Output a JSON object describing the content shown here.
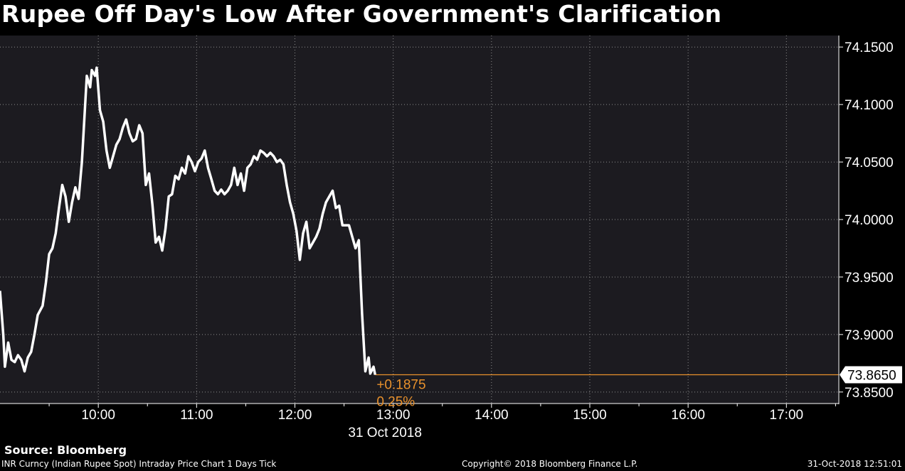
{
  "chart_data": {
    "type": "line",
    "title": "Rupee Off Day's Low After Government's Clarification",
    "date_label": "31 Oct 2018",
    "x_ticks": [
      "10:00",
      "11:00",
      "12:00",
      "13:00",
      "14:00",
      "15:00",
      "16:00",
      "17:00"
    ],
    "x_range": [
      "09:00",
      "17:32"
    ],
    "y_ticks": [
      "74.1500",
      "74.1000",
      "74.0500",
      "74.0000",
      "73.9500",
      "73.9000",
      "73.8500"
    ],
    "ylim": [
      73.84,
      74.16
    ],
    "grid": true,
    "last_value_label": "73.8650",
    "last_value": 73.865,
    "change_abs": "+0.1875",
    "change_pct": "0.25%",
    "line_color": "#ffffff",
    "ref_line_color": "#e8912c",
    "series": [
      {
        "points": [
          [
            "09:00",
            73.938
          ],
          [
            "09:02",
            73.9
          ],
          [
            "09:03",
            73.872
          ],
          [
            "09:05",
            73.893
          ],
          [
            "09:07",
            73.878
          ],
          [
            "09:09",
            73.876
          ],
          [
            "09:11",
            73.882
          ],
          [
            "09:13",
            73.878
          ],
          [
            "09:15",
            73.868
          ],
          [
            "09:17",
            73.88
          ],
          [
            "09:19",
            73.885
          ],
          [
            "09:21",
            73.9
          ],
          [
            "09:23",
            73.917
          ],
          [
            "09:26",
            73.925
          ],
          [
            "09:28",
            73.945
          ],
          [
            "09:30",
            73.97
          ],
          [
            "09:32",
            73.975
          ],
          [
            "09:34",
            73.988
          ],
          [
            "09:36",
            74.01
          ],
          [
            "09:38",
            74.03
          ],
          [
            "09:40",
            74.02
          ],
          [
            "09:42",
            73.998
          ],
          [
            "09:44",
            74.015
          ],
          [
            "09:46",
            74.028
          ],
          [
            "09:48",
            74.018
          ],
          [
            "09:50",
            74.05
          ],
          [
            "09:52",
            74.1
          ],
          [
            "09:53",
            74.125
          ],
          [
            "09:55",
            74.115
          ],
          [
            "09:56",
            74.13
          ],
          [
            "09:58",
            74.125
          ],
          [
            "09:59",
            74.132
          ],
          [
            "10:01",
            74.095
          ],
          [
            "10:03",
            74.085
          ],
          [
            "10:05",
            74.06
          ],
          [
            "10:07",
            74.045
          ],
          [
            "10:09",
            74.055
          ],
          [
            "10:11",
            74.065
          ],
          [
            "10:13",
            74.07
          ],
          [
            "10:15",
            74.08
          ],
          [
            "10:17",
            74.087
          ],
          [
            "10:19",
            74.075
          ],
          [
            "10:21",
            74.068
          ],
          [
            "10:23",
            74.07
          ],
          [
            "10:25",
            74.082
          ],
          [
            "10:27",
            74.075
          ],
          [
            "10:29",
            74.03
          ],
          [
            "10:31",
            74.04
          ],
          [
            "10:33",
            74.013
          ],
          [
            "10:35",
            73.98
          ],
          [
            "10:37",
            73.985
          ],
          [
            "10:39",
            73.973
          ],
          [
            "10:41",
            73.992
          ],
          [
            "10:43",
            74.02
          ],
          [
            "10:45",
            74.022
          ],
          [
            "10:47",
            74.038
          ],
          [
            "10:49",
            74.035
          ],
          [
            "10:51",
            74.045
          ],
          [
            "10:53",
            74.04
          ],
          [
            "10:55",
            74.055
          ],
          [
            "10:57",
            74.05
          ],
          [
            "10:59",
            74.042
          ],
          [
            "11:01",
            74.05
          ],
          [
            "11:03",
            74.053
          ],
          [
            "11:05",
            74.06
          ],
          [
            "11:07",
            74.045
          ],
          [
            "11:09",
            74.035
          ],
          [
            "11:11",
            74.025
          ],
          [
            "11:13",
            74.022
          ],
          [
            "11:15",
            74.026
          ],
          [
            "11:17",
            74.022
          ],
          [
            "11:19",
            74.025
          ],
          [
            "11:21",
            74.03
          ],
          [
            "11:23",
            74.045
          ],
          [
            "11:25",
            74.03
          ],
          [
            "11:27",
            74.04
          ],
          [
            "11:29",
            74.025
          ],
          [
            "11:31",
            74.045
          ],
          [
            "11:33",
            74.048
          ],
          [
            "11:35",
            74.055
          ],
          [
            "11:37",
            74.052
          ],
          [
            "11:39",
            74.06
          ],
          [
            "11:41",
            74.058
          ],
          [
            "11:43",
            74.055
          ],
          [
            "11:45",
            74.058
          ],
          [
            "11:47",
            74.055
          ],
          [
            "11:49",
            74.05
          ],
          [
            "11:51",
            74.052
          ],
          [
            "11:53",
            74.048
          ],
          [
            "11:55",
            74.03
          ],
          [
            "11:57",
            74.015
          ],
          [
            "11:59",
            74.005
          ],
          [
            "12:01",
            73.99
          ],
          [
            "12:03",
            73.965
          ],
          [
            "12:05",
            73.988
          ],
          [
            "12:07",
            73.998
          ],
          [
            "12:09",
            73.975
          ],
          [
            "12:11",
            73.98
          ],
          [
            "12:13",
            73.985
          ],
          [
            "12:15",
            73.992
          ],
          [
            "12:17",
            74.005
          ],
          [
            "12:19",
            74.015
          ],
          [
            "12:21",
            74.02
          ],
          [
            "12:23",
            74.025
          ],
          [
            "12:25",
            74.01
          ],
          [
            "12:27",
            74.012
          ],
          [
            "12:29",
            73.995
          ],
          [
            "12:31",
            73.995
          ],
          [
            "12:33",
            73.995
          ],
          [
            "12:35",
            73.985
          ],
          [
            "12:37",
            73.975
          ],
          [
            "12:39",
            73.982
          ],
          [
            "12:41",
            73.918
          ],
          [
            "12:43",
            73.868
          ],
          [
            "12:45",
            73.88
          ],
          [
            "12:46",
            73.866
          ],
          [
            "12:48",
            73.872
          ],
          [
            "12:49",
            73.865
          ]
        ]
      }
    ]
  },
  "source": "Source: Bloomberg",
  "footer": {
    "left": "INR Curncy (Indian Rupee Spot) Intraday Price Chart 1 Days  Tick",
    "center": "Copyright© 2018 Bloomberg Finance L.P.",
    "right": "31-Oct-2018 12:51:01"
  }
}
